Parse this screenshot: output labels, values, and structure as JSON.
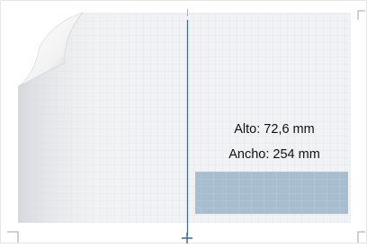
{
  "labels": {
    "height": "Alto: 72,6 mm",
    "width": "Ancho: 254 mm"
  }
}
